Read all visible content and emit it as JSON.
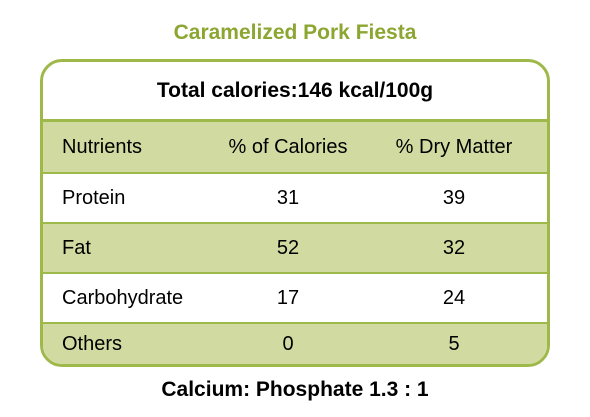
{
  "title": "Caramelized Pork Fiesta",
  "total_calories": "Total calories:146 kcal/100g",
  "table": {
    "headers": [
      "Nutrients",
      "% of Calories",
      "% Dry Matter"
    ],
    "rows": [
      {
        "nutrient": "Protein",
        "calories_pct": "31",
        "dry_matter_pct": "39"
      },
      {
        "nutrient": "Fat",
        "calories_pct": "52",
        "dry_matter_pct": "32"
      },
      {
        "nutrient": "Carbohydrate",
        "calories_pct": "17",
        "dry_matter_pct": "24"
      },
      {
        "nutrient": "Others",
        "calories_pct": "0",
        "dry_matter_pct": "5"
      }
    ]
  },
  "footer": "Calcium: Phosphate 1.3 : 1",
  "colors": {
    "title": "#8ca632",
    "border": "#9fb84a",
    "shaded_row": "#d1dba1"
  }
}
